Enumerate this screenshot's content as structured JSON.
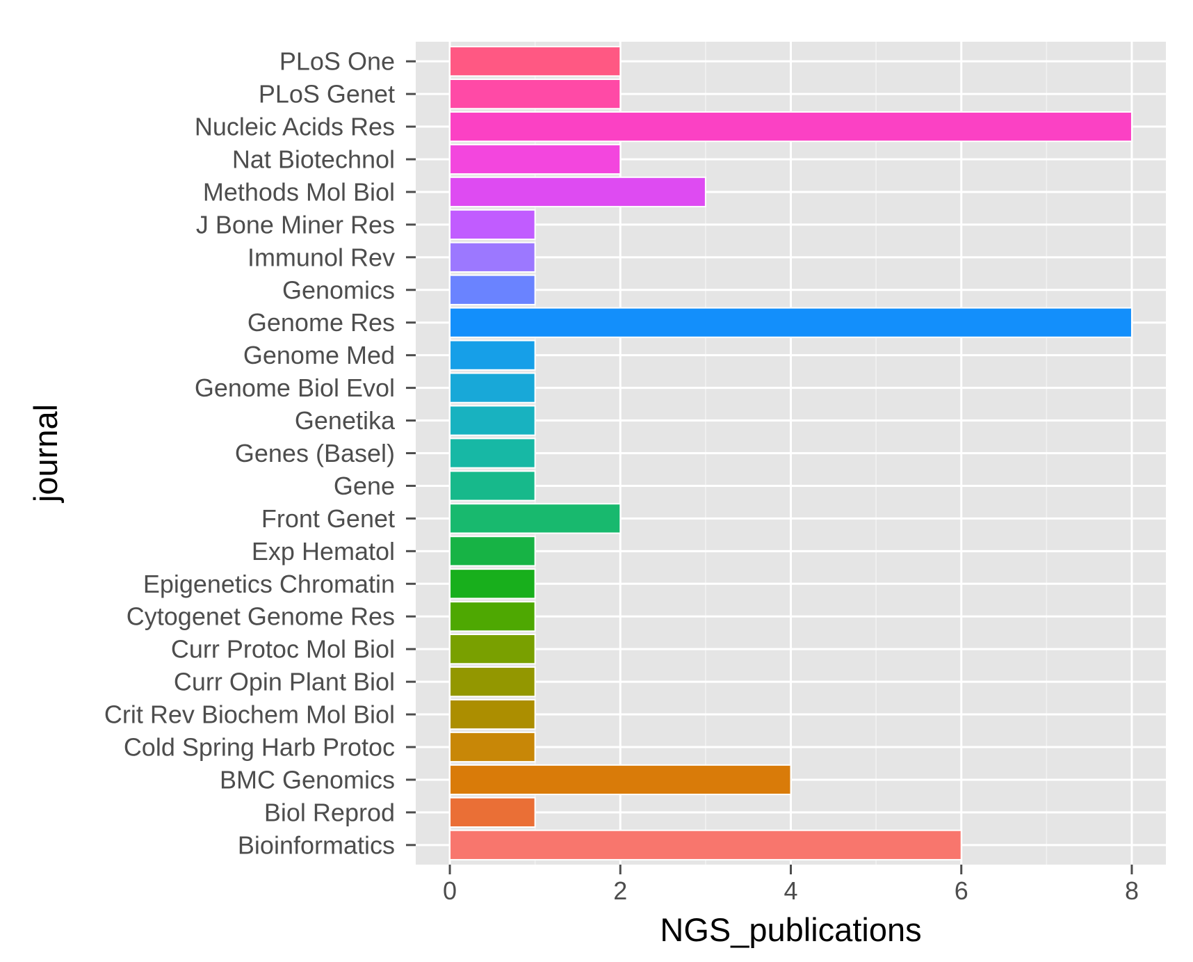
{
  "chart_data": {
    "type": "bar",
    "orientation": "horizontal",
    "xlabel": "NGS_publications",
    "ylabel": "journal",
    "xlim": [
      -0.4,
      8.4
    ],
    "xticks": [
      0,
      2,
      4,
      6,
      8
    ],
    "grid": true,
    "legend": "none",
    "background": "#e5e5e5",
    "categories": [
      "Bioinformatics",
      "Biol Reprod",
      "BMC Genomics",
      "Cold Spring Harb Protoc",
      "Crit Rev Biochem Mol Biol",
      "Curr Opin Plant Biol",
      "Curr Protoc Mol Biol",
      "Cytogenet Genome Res",
      "Epigenetics Chromatin",
      "Exp Hematol",
      "Front Genet",
      "Gene",
      "Genes (Basel)",
      "Genetika",
      "Genome Biol Evol",
      "Genome Med",
      "Genome Res",
      "Genomics",
      "Immunol Rev",
      "J Bone Miner Res",
      "Methods Mol Biol",
      "Nat Biotechnol",
      "Nucleic Acids Res",
      "PLoS Genet",
      "PLoS One"
    ],
    "values": [
      6,
      1,
      4,
      1,
      1,
      1,
      1,
      1,
      1,
      1,
      2,
      1,
      1,
      1,
      1,
      1,
      8,
      1,
      1,
      1,
      3,
      2,
      8,
      2,
      2
    ],
    "colors": [
      "#f8766d",
      "#ea6f36",
      "#d97b09",
      "#c88707",
      "#ac8e00",
      "#939700",
      "#79a000",
      "#4ea802",
      "#18af1c",
      "#17b345",
      "#18b96e",
      "#17b98b",
      "#17b8a5",
      "#18b2c0",
      "#18a8d8",
      "#169fe8",
      "#138ffb",
      "#6a83ff",
      "#9c78ff",
      "#c15cff",
      "#de4bf2",
      "#f346de",
      "#fb41c4",
      "#ff4aa6",
      "#ff5883"
    ]
  }
}
